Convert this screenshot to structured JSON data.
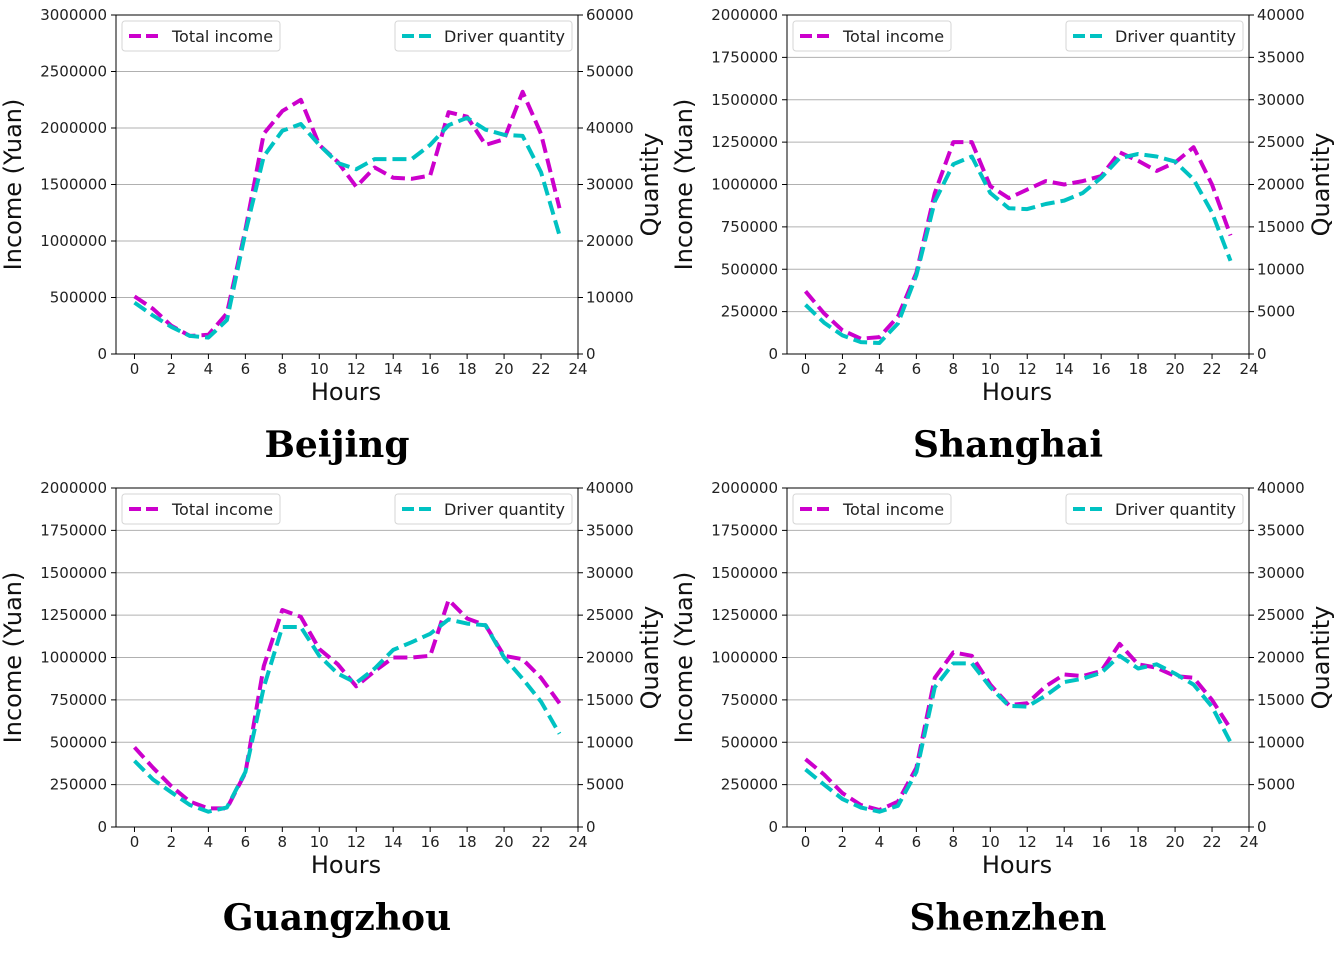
{
  "colors": {
    "income": "#cc00cc",
    "drivers": "#00c2c2"
  },
  "chart_data": [
    {
      "type": "line",
      "caption": "Beijing",
      "xlabel": "Hours",
      "ylabel_left": "Income (Yuan)",
      "ylabel_right": "Quantity",
      "xlim": [
        -1,
        24
      ],
      "xticks": [
        0,
        2,
        4,
        6,
        8,
        10,
        12,
        14,
        16,
        18,
        20,
        22,
        24
      ],
      "ylim_left": [
        0,
        3000000
      ],
      "yticks_left": [
        0,
        500000,
        1000000,
        1500000,
        2000000,
        2500000,
        3000000
      ],
      "ylim_right": [
        0,
        60000
      ],
      "yticks_right": [
        0,
        10000,
        20000,
        30000,
        40000,
        50000,
        60000
      ],
      "legend_left": "top-left",
      "legend_right": "top-right",
      "grid": "horizontal",
      "x": [
        0,
        1,
        2,
        3,
        4,
        5,
        6,
        7,
        8,
        9,
        10,
        11,
        12,
        13,
        14,
        15,
        16,
        17,
        18,
        19,
        20,
        21,
        22,
        23
      ],
      "series": [
        {
          "name": "Total income",
          "axis": "left",
          "values": [
            510000,
            400000,
            250000,
            160000,
            170000,
            360000,
            1100000,
            1950000,
            2150000,
            2250000,
            1850000,
            1700000,
            1480000,
            1650000,
            1560000,
            1550000,
            1580000,
            2140000,
            2100000,
            1850000,
            1900000,
            2320000,
            1950000,
            1290000
          ]
        },
        {
          "name": "Driver quantity",
          "axis": "right",
          "values": [
            9100,
            6800,
            4800,
            3200,
            2900,
            6000,
            21500,
            35000,
            39500,
            40700,
            37000,
            33800,
            32700,
            34500,
            34500,
            34500,
            37000,
            40500,
            41800,
            39700,
            38800,
            38600,
            32200,
            21000
          ]
        }
      ]
    },
    {
      "type": "line",
      "caption": "Shanghai",
      "xlabel": "Hours",
      "ylabel_left": "Income (Yuan)",
      "ylabel_right": "Quantity",
      "xlim": [
        -1,
        24
      ],
      "xticks": [
        0,
        2,
        4,
        6,
        8,
        10,
        12,
        14,
        16,
        18,
        20,
        22,
        24
      ],
      "ylim_left": [
        0,
        2000000
      ],
      "yticks_left": [
        0,
        250000,
        500000,
        750000,
        1000000,
        1250000,
        1500000,
        1750000,
        2000000
      ],
      "ylim_right": [
        0,
        40000
      ],
      "yticks_right": [
        0,
        5000,
        10000,
        15000,
        20000,
        25000,
        30000,
        35000,
        40000
      ],
      "legend_left": "top-left",
      "legend_right": "top-right",
      "grid": "horizontal",
      "x": [
        0,
        1,
        2,
        3,
        4,
        5,
        6,
        7,
        8,
        9,
        10,
        11,
        12,
        13,
        14,
        15,
        16,
        17,
        18,
        19,
        20,
        21,
        22,
        23
      ],
      "series": [
        {
          "name": "Total income",
          "axis": "left",
          "values": [
            370000,
            240000,
            140000,
            90000,
            100000,
            220000,
            480000,
            950000,
            1250000,
            1250000,
            990000,
            920000,
            970000,
            1020000,
            1000000,
            1020000,
            1050000,
            1190000,
            1140000,
            1080000,
            1130000,
            1220000,
            1000000,
            700000
          ]
        },
        {
          "name": "Driver quantity",
          "axis": "right",
          "values": [
            5800,
            3700,
            2200,
            1400,
            1300,
            3600,
            9300,
            18000,
            22400,
            23300,
            19000,
            17200,
            17100,
            17700,
            18100,
            19000,
            20800,
            23100,
            23600,
            23300,
            22700,
            20600,
            16700,
            11000
          ]
        }
      ]
    },
    {
      "type": "line",
      "caption": "Guangzhou",
      "xlabel": "Hours",
      "ylabel_left": "Income (Yuan)",
      "ylabel_right": "Quantity",
      "xlim": [
        -1,
        24
      ],
      "xticks": [
        0,
        2,
        4,
        6,
        8,
        10,
        12,
        14,
        16,
        18,
        20,
        22,
        24
      ],
      "ylim_left": [
        0,
        2000000
      ],
      "yticks_left": [
        0,
        250000,
        500000,
        750000,
        1000000,
        1250000,
        1500000,
        1750000,
        2000000
      ],
      "ylim_right": [
        0,
        40000
      ],
      "yticks_right": [
        0,
        5000,
        10000,
        15000,
        20000,
        25000,
        30000,
        35000,
        40000
      ],
      "legend_left": "top-left",
      "legend_right": "top-right",
      "grid": "horizontal",
      "x": [
        0,
        1,
        2,
        3,
        4,
        5,
        6,
        7,
        8,
        9,
        10,
        11,
        12,
        13,
        14,
        15,
        16,
        17,
        18,
        19,
        20,
        21,
        22,
        23
      ],
      "series": [
        {
          "name": "Total income",
          "axis": "left",
          "values": [
            470000,
            350000,
            240000,
            150000,
            110000,
            110000,
            320000,
            950000,
            1280000,
            1240000,
            1050000,
            960000,
            830000,
            920000,
            1000000,
            1000000,
            1010000,
            1340000,
            1230000,
            1190000,
            1010000,
            990000,
            880000,
            730000
          ]
        },
        {
          "name": "Driver quantity",
          "axis": "right",
          "values": [
            7800,
            5600,
            4100,
            2600,
            1800,
            2300,
            6500,
            16500,
            23600,
            23600,
            20200,
            18100,
            17000,
            18700,
            20900,
            21800,
            22800,
            24500,
            24000,
            23800,
            20000,
            17500,
            14800,
            11000
          ]
        }
      ]
    },
    {
      "type": "line",
      "caption": "Shenzhen",
      "xlabel": "Hours",
      "ylabel_left": "Income (Yuan)",
      "ylabel_right": "Quantity",
      "xlim": [
        -1,
        24
      ],
      "xticks": [
        0,
        2,
        4,
        6,
        8,
        10,
        12,
        14,
        16,
        18,
        20,
        22,
        24
      ],
      "ylim_left": [
        0,
        2000000
      ],
      "yticks_left": [
        0,
        250000,
        500000,
        750000,
        1000000,
        1250000,
        1500000,
        1750000,
        2000000
      ],
      "ylim_right": [
        0,
        40000
      ],
      "yticks_right": [
        0,
        5000,
        10000,
        15000,
        20000,
        25000,
        30000,
        35000,
        40000
      ],
      "legend_left": "top-left",
      "legend_right": "top-right",
      "grid": "horizontal",
      "x": [
        0,
        1,
        2,
        3,
        4,
        5,
        6,
        7,
        8,
        9,
        10,
        11,
        12,
        13,
        14,
        15,
        16,
        17,
        18,
        19,
        20,
        21,
        22,
        23
      ],
      "series": [
        {
          "name": "Total income",
          "axis": "left",
          "values": [
            400000,
            310000,
            200000,
            130000,
            100000,
            150000,
            350000,
            880000,
            1030000,
            1010000,
            840000,
            720000,
            730000,
            830000,
            900000,
            890000,
            920000,
            1080000,
            960000,
            940000,
            890000,
            880000,
            750000,
            580000
          ]
        },
        {
          "name": "Driver quantity",
          "axis": "right",
          "values": [
            6800,
            5000,
            3300,
            2300,
            1800,
            2500,
            6500,
            16500,
            19300,
            19300,
            16500,
            14300,
            14200,
            15500,
            17100,
            17500,
            18200,
            20200,
            18700,
            19200,
            18100,
            16800,
            14200,
            10000
          ]
        }
      ]
    }
  ]
}
